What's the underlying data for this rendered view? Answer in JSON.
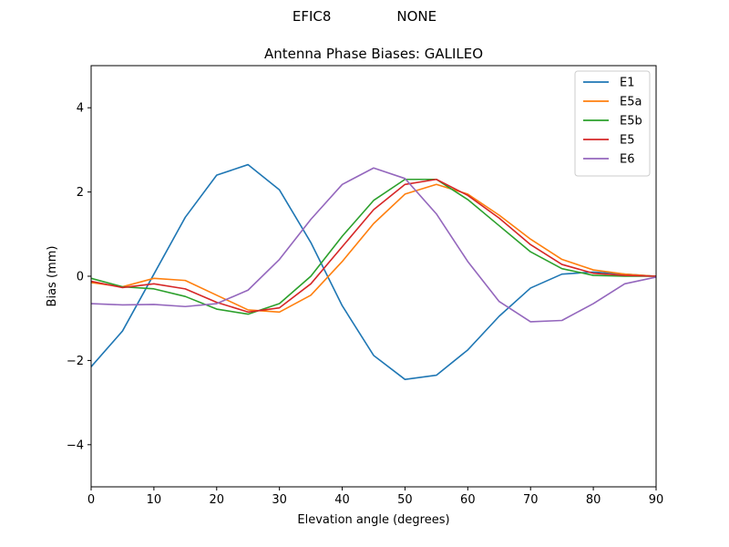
{
  "header": {
    "left_label": "EFIC8",
    "right_label": "NONE"
  },
  "chart_data": {
    "type": "line",
    "title": "Antenna Phase Biases: GALILEO",
    "xlabel": "Elevation angle (degrees)",
    "ylabel": "Bias (mm)",
    "xlim": [
      0,
      90
    ],
    "ylim": [
      -5,
      5
    ],
    "xticks": [
      0,
      10,
      20,
      30,
      40,
      50,
      60,
      70,
      80,
      90
    ],
    "yticks": [
      -4,
      -2,
      0,
      2,
      4
    ],
    "grid": false,
    "legend_position": "top-right",
    "x": [
      0,
      5,
      10,
      15,
      20,
      25,
      30,
      35,
      40,
      45,
      50,
      55,
      60,
      65,
      70,
      75,
      80,
      85,
      90
    ],
    "series": [
      {
        "name": "E1",
        "color": "#1f77b4",
        "values": [
          -2.15,
          -1.3,
          0.05,
          1.4,
          2.4,
          2.65,
          2.05,
          0.8,
          -0.7,
          -1.88,
          -2.45,
          -2.35,
          -1.75,
          -0.95,
          -0.28,
          0.05,
          0.1,
          0.05,
          0.0
        ]
      },
      {
        "name": "E5a",
        "color": "#ff7f0e",
        "values": [
          -0.15,
          -0.25,
          -0.05,
          -0.1,
          -0.45,
          -0.8,
          -0.85,
          -0.45,
          0.35,
          1.25,
          1.95,
          2.18,
          1.95,
          1.45,
          0.88,
          0.4,
          0.15,
          0.05,
          0.0
        ]
      },
      {
        "name": "E5b",
        "color": "#2ca02c",
        "values": [
          -0.05,
          -0.25,
          -0.3,
          -0.48,
          -0.78,
          -0.9,
          -0.65,
          0.0,
          0.95,
          1.8,
          2.3,
          2.3,
          1.82,
          1.2,
          0.58,
          0.18,
          0.02,
          0.0,
          0.0
        ]
      },
      {
        "name": "E5",
        "color": "#d62728",
        "values": [
          -0.12,
          -0.27,
          -0.18,
          -0.3,
          -0.62,
          -0.85,
          -0.75,
          -0.18,
          0.7,
          1.58,
          2.18,
          2.3,
          1.92,
          1.38,
          0.75,
          0.28,
          0.07,
          0.02,
          0.0
        ]
      },
      {
        "name": "E6",
        "color": "#9467bd",
        "values": [
          -0.65,
          -0.68,
          -0.67,
          -0.72,
          -0.65,
          -0.33,
          0.4,
          1.35,
          2.18,
          2.57,
          2.32,
          1.48,
          0.35,
          -0.6,
          -1.08,
          -1.05,
          -0.65,
          -0.18,
          -0.02
        ]
      }
    ]
  }
}
